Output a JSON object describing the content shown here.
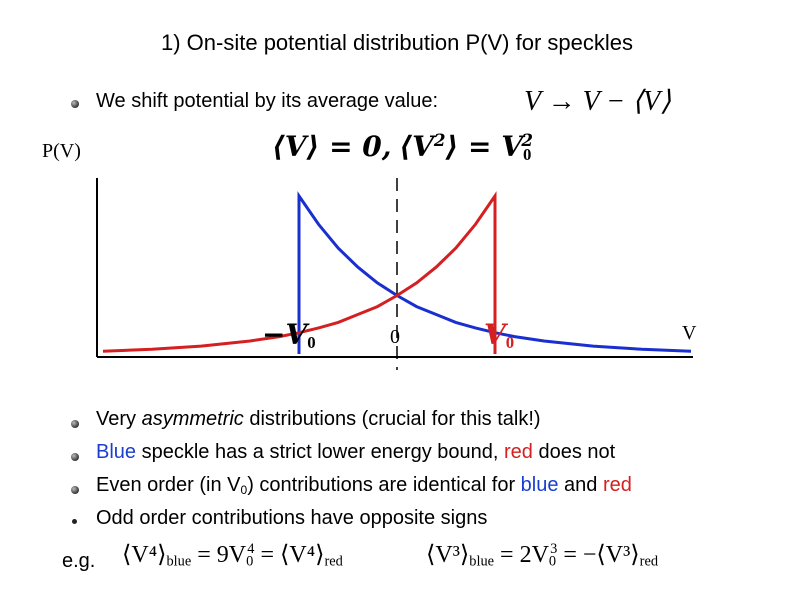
{
  "slide": {
    "title": "1) On-site potential distribution P(V) for speckles",
    "shift_text": "We shift potential by its average value:",
    "shift_formula": "V → V − ⟨V⟩",
    "moments_a": "⟨V⟩ = 0,",
    "moments_b_lhs": "⟨V",
    "moments_b_mid": "⟩ = V",
    "sup2": "2",
    "sub0": "0",
    "ylabel": "P(V)",
    "xlabel": "V",
    "tick_neg": "−V",
    "tick_zero": "0",
    "tick_pos": "V",
    "bullet1_a": "Very ",
    "bullet1_em": "asymmetric",
    "bullet1_b": " distributions (crucial for this talk!)",
    "bullet2_blue": "Blue",
    "bullet2_mid": " speckle has a strict lower energy bound, ",
    "bullet2_red": "red",
    "bullet2_end": " does not",
    "bullet3_a": "Even order (in V",
    "bullet3_b": ") contributions are identical for ",
    "bullet3_blue": "blue",
    "bullet3_and": " and ",
    "bullet3_red": "red",
    "bullet4": "Odd order contributions have opposite signs",
    "eg": "e.g.",
    "eq1": "⟨V⁴⟩",
    "eq1_sub": "blue",
    "eq1_mid": "= 9V",
    "eq1_sup": "4",
    "eq1_rhs": "= ⟨V⁴⟩",
    "eq1_sub2": "red",
    "eq2": "⟨V³⟩",
    "eq2_sub": "blue",
    "eq2_mid": "= 2V",
    "eq2_sup": "3",
    "eq2_rhs": "= −⟨V³⟩",
    "eq2_sub2": "red"
  },
  "colors": {
    "blue": "#1a2fd0",
    "red": "#d42020",
    "axis": "#000000"
  },
  "chart_data": {
    "type": "line",
    "xlabel": "V",
    "ylabel": "P(V)",
    "series": [
      {
        "color": "blue",
        "x": [
          -1,
          -0.8,
          -0.6,
          -0.4,
          -0.2,
          0,
          0.2,
          0.4,
          0.6,
          0.8,
          1,
          1.2,
          1.5,
          2.0,
          2.5,
          3.0
        ],
        "y": [
          1.0,
          0.82,
          0.67,
          0.55,
          0.45,
          0.37,
          0.3,
          0.25,
          0.2,
          0.165,
          0.135,
          0.11,
          0.082,
          0.05,
          0.03,
          0.018
        ]
      },
      {
        "color": "red",
        "x": [
          -3.0,
          -2.5,
          -2.0,
          -1.5,
          -1.2,
          -1,
          -0.8,
          -0.6,
          -0.4,
          -0.2,
          0,
          0.2,
          0.4,
          0.6,
          0.8,
          1
        ],
        "y": [
          0.018,
          0.03,
          0.05,
          0.082,
          0.11,
          0.135,
          0.165,
          0.2,
          0.25,
          0.3,
          0.37,
          0.45,
          0.55,
          0.67,
          0.82,
          1.0
        ]
      }
    ],
    "xlim": [
      -3.0,
      3.0
    ],
    "ylim": [
      0,
      1.0
    ],
    "markers": [
      "-V0",
      "0",
      "V0"
    ]
  }
}
